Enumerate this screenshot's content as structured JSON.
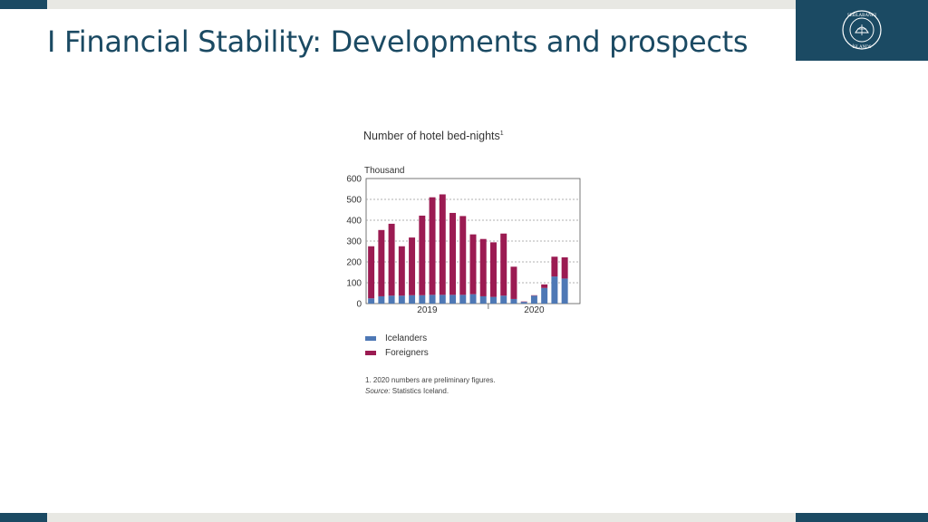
{
  "slide": {
    "title": "I Financial Stability: Developments and prospects"
  },
  "logo": {
    "text_upper": "SEÐLABANKI",
    "text_lower": "ÍSLANDS"
  },
  "colors": {
    "brand": "#1b4a63",
    "band": "#e8e8e3",
    "icelanders": "#4e78b5",
    "foreigners": "#9b1b52"
  },
  "chart_data": {
    "type": "bar",
    "stacked": true,
    "title": "Number of hotel bed-nights",
    "title_footnote_mark": "1",
    "unit_label": "Thousand",
    "ylim": [
      0,
      600
    ],
    "yticks": [
      0,
      100,
      200,
      300,
      400,
      500,
      600
    ],
    "x_year_labels": [
      "2019",
      "2020"
    ],
    "categories": [
      "2019-01",
      "2019-02",
      "2019-03",
      "2019-04",
      "2019-05",
      "2019-06",
      "2019-07",
      "2019-08",
      "2019-09",
      "2019-10",
      "2019-11",
      "2019-12",
      "2020-01",
      "2020-02",
      "2020-03",
      "2020-04",
      "2020-05",
      "2020-06",
      "2020-07",
      "2020-08",
      "2020-09"
    ],
    "series": [
      {
        "name": "Icelanders",
        "color": "#4e78b5",
        "values": [
          25,
          35,
          38,
          38,
          40,
          40,
          42,
          42,
          42,
          42,
          45,
          35,
          32,
          38,
          22,
          8,
          38,
          75,
          130,
          120,
          0
        ]
      },
      {
        "name": "Foreigners",
        "color": "#9b1b52",
        "values": [
          250,
          318,
          345,
          237,
          277,
          382,
          468,
          482,
          393,
          378,
          287,
          275,
          262,
          298,
          155,
          2,
          2,
          17,
          95,
          102,
          0
        ]
      }
    ],
    "grid": "dotted horizontal",
    "legend_position": "bottom-left",
    "footnotes": [
      {
        "text": "1. 2020 numbers are preliminary figures.",
        "italic": false
      },
      {
        "prefix": "Source:",
        "text": " Statistics Iceland."
      }
    ]
  }
}
